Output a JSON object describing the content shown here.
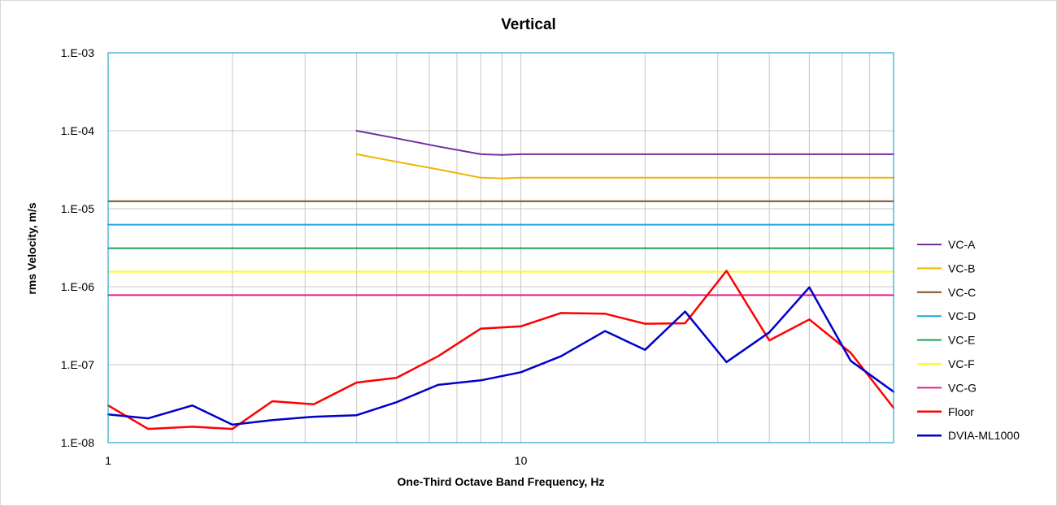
{
  "chart_data": {
    "type": "line",
    "title": "Vertical",
    "xlabel": "One-Third Octave Band Frequency, Hz",
    "ylabel": "rms Velocity, m/s",
    "x_scale": "log",
    "y_scale": "log",
    "xlim": [
      1,
      80
    ],
    "ylim": [
      1e-08,
      0.001
    ],
    "x_tick_labels": [
      {
        "value": 1,
        "label": "1"
      },
      {
        "value": 10,
        "label": "10"
      }
    ],
    "y_tick_labels": [
      {
        "value": 0.001,
        "label": "1.E-03"
      },
      {
        "value": 0.0001,
        "label": "1.E-04"
      },
      {
        "value": 1e-05,
        "label": "1.E-05"
      },
      {
        "value": 1e-06,
        "label": "1.E-06"
      },
      {
        "value": 1e-07,
        "label": "1.E-07"
      },
      {
        "value": 1e-08,
        "label": "1.E-08"
      }
    ],
    "grid": true,
    "legend_position": "right",
    "series": [
      {
        "name": "VC-A",
        "color": "#7030A0",
        "width": 2,
        "x": [
          4,
          5,
          6.3,
          8,
          9,
          10,
          80
        ],
        "y": [
          0.0001,
          8e-05,
          6.3e-05,
          5e-05,
          4.9e-05,
          5e-05,
          5e-05
        ]
      },
      {
        "name": "VC-B",
        "color": "#F0B400",
        "width": 2,
        "x": [
          4,
          5,
          6.3,
          8,
          9,
          10,
          80
        ],
        "y": [
          5e-05,
          4e-05,
          3.2e-05,
          2.5e-05,
          2.45e-05,
          2.5e-05,
          2.5e-05
        ]
      },
      {
        "name": "VC-C",
        "color": "#7F4F1F",
        "width": 2,
        "x": [
          1,
          80
        ],
        "y": [
          1.25e-05,
          1.25e-05
        ]
      },
      {
        "name": "VC-D",
        "color": "#1FA7E0",
        "width": 2,
        "x": [
          1,
          80
        ],
        "y": [
          6.25e-06,
          6.25e-06
        ]
      },
      {
        "name": "VC-E",
        "color": "#1EA05A",
        "width": 2,
        "x": [
          1,
          80
        ],
        "y": [
          3.12e-06,
          3.12e-06
        ]
      },
      {
        "name": "VC-F",
        "color": "#FFFF00",
        "width": 2,
        "x": [
          1,
          80
        ],
        "y": [
          1.56e-06,
          1.56e-06
        ]
      },
      {
        "name": "VC-G",
        "color": "#E0208A",
        "width": 2,
        "x": [
          1,
          80
        ],
        "y": [
          7.8e-07,
          7.8e-07
        ]
      },
      {
        "name": "Floor",
        "color": "#FF0000",
        "width": 2.5,
        "x": [
          1,
          1.25,
          1.6,
          2,
          2.5,
          3.15,
          4,
          5,
          6.3,
          8,
          10,
          12.5,
          16,
          20,
          25,
          31.5,
          40,
          50,
          63,
          80
        ],
        "y": [
          3e-08,
          1.5e-08,
          1.6e-08,
          1.5e-08,
          3.4e-08,
          3.1e-08,
          5.9e-08,
          6.8e-08,
          1.28e-07,
          2.9e-07,
          3.1e-07,
          4.6e-07,
          4.5e-07,
          3.35e-07,
          3.4e-07,
          1.6e-06,
          2.05e-07,
          3.8e-07,
          1.42e-07,
          2.8e-08
        ]
      },
      {
        "name": "DVIA-ML1000",
        "color": "#0000CC",
        "width": 2.5,
        "x": [
          1,
          1.25,
          1.6,
          2,
          2.5,
          3.15,
          4,
          5,
          6.3,
          8,
          10,
          12.5,
          16,
          20,
          25,
          31.5,
          40,
          50,
          63,
          80
        ],
        "y": [
          2.3e-08,
          2.05e-08,
          3e-08,
          1.7e-08,
          1.95e-08,
          2.15e-08,
          2.25e-08,
          3.3e-08,
          5.5e-08,
          6.3e-08,
          8e-08,
          1.28e-07,
          2.7e-07,
          1.55e-07,
          4.8e-07,
          1.08e-07,
          2.6e-07,
          9.8e-07,
          1.12e-07,
          4.5e-08
        ]
      }
    ]
  }
}
